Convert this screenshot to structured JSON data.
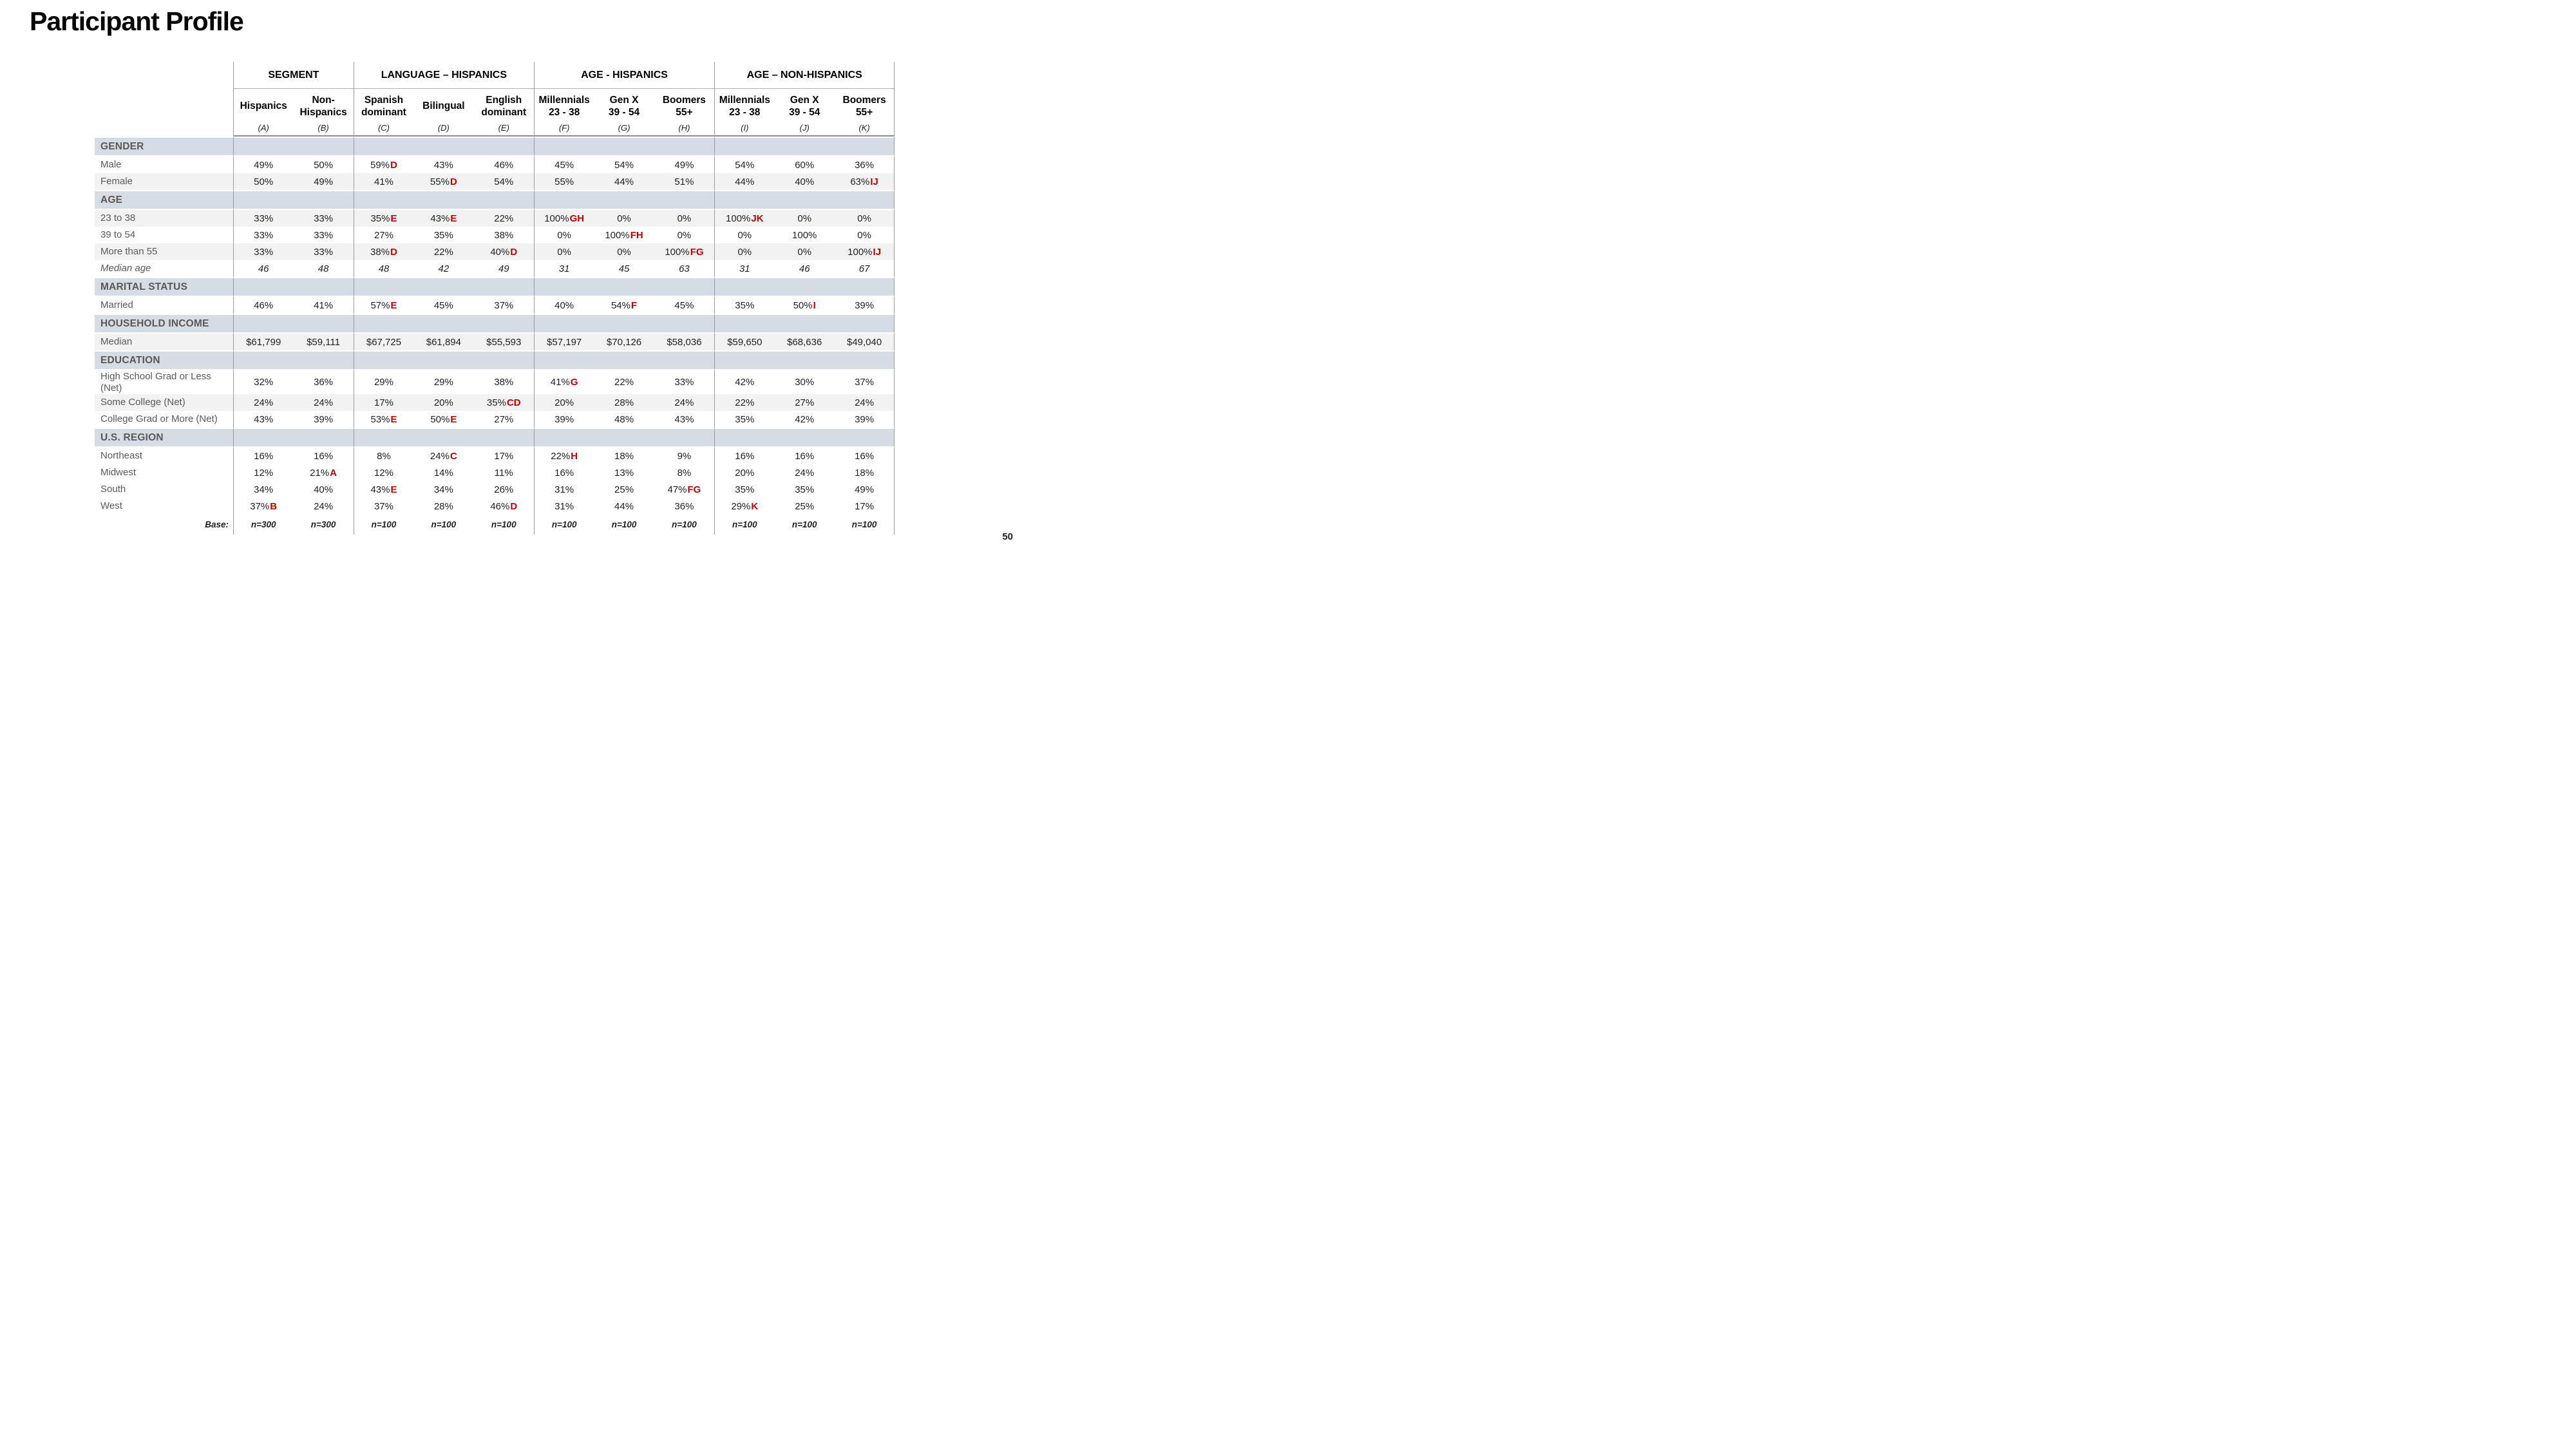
{
  "page": {
    "title": "Participant Profile",
    "page_number": "50"
  },
  "colors": {
    "accent_red": "#C00000",
    "section_band": "#D6DCE4",
    "row_stripe": "#F2F2F2",
    "grid_line": "#9B9B9B",
    "label_gray": "#595959"
  },
  "table": {
    "groups": [
      {
        "label": "SEGMENT",
        "cols": 2
      },
      {
        "label": "LANGUAGE – HISPANICS",
        "cols": 3
      },
      {
        "label": "AGE - HISPANICS",
        "cols": 3
      },
      {
        "label": "AGE – NON-HISPANICS",
        "cols": 3
      }
    ],
    "columns": [
      {
        "name": "Hispanics",
        "letter": "(A)"
      },
      {
        "name": "Non-\nHispanics",
        "letter": "(B)"
      },
      {
        "name": "Spanish\ndominant",
        "letter": "(C)"
      },
      {
        "name": "Bilingual",
        "letter": "(D)"
      },
      {
        "name": "English\ndominant",
        "letter": "(E)"
      },
      {
        "name": "Millennials\n23 - 38",
        "letter": "(F)"
      },
      {
        "name": "Gen X\n39 - 54",
        "letter": "(G)"
      },
      {
        "name": "Boomers\n55+",
        "letter": "(H)"
      },
      {
        "name": "Millennials\n23 - 38",
        "letter": "(I)"
      },
      {
        "name": "Gen X\n39 - 54",
        "letter": "(J)"
      },
      {
        "name": "Boomers\n55+",
        "letter": "(K)"
      }
    ],
    "sections": [
      {
        "header": "GENDER",
        "rows": [
          {
            "label": "Male",
            "bg": "white",
            "cells": [
              "49%",
              "50%",
              {
                "t": "59%",
                "s": "D"
              },
              "43%",
              "46%",
              "45%",
              "54%",
              "49%",
              "54%",
              "60%",
              "36%"
            ]
          },
          {
            "label": "Female",
            "bg": "stripe",
            "cells": [
              "50%",
              "49%",
              "41%",
              {
                "t": "55%",
                "s": "D"
              },
              "54%",
              "55%",
              "44%",
              "51%",
              "44%",
              "40%",
              {
                "t": "63%",
                "s": "IJ"
              }
            ]
          }
        ]
      },
      {
        "header": "AGE",
        "rows": [
          {
            "label": "23 to 38",
            "bg": "stripe",
            "cells": [
              "33%",
              "33%",
              {
                "t": "35%",
                "s": "E"
              },
              {
                "t": "43%",
                "s": "E"
              },
              "22%",
              {
                "t": "100%",
                "s": "GH"
              },
              "0%",
              "0%",
              {
                "t": "100%",
                "s": "JK"
              },
              "0%",
              "0%"
            ]
          },
          {
            "label": "39 to 54",
            "bg": "white",
            "cells": [
              "33%",
              "33%",
              "27%",
              "35%",
              "38%",
              "0%",
              {
                "t": "100%",
                "s": "FH"
              },
              "0%",
              "0%",
              "100%",
              "0%"
            ]
          },
          {
            "label": "More than 55",
            "bg": "stripe",
            "cells": [
              "33%",
              "33%",
              {
                "t": "38%",
                "s": "D"
              },
              "22%",
              {
                "t": "40%",
                "s": "D"
              },
              "0%",
              "0%",
              {
                "t": "100%",
                "s": "FG"
              },
              "0%",
              "0%",
              {
                "t": "100%",
                "s": "IJ"
              }
            ]
          },
          {
            "label": "Median age",
            "bg": "white",
            "italic": true,
            "cells": [
              "46",
              "48",
              "48",
              "42",
              "49",
              "31",
              "45",
              "63",
              "31",
              "46",
              "67"
            ]
          }
        ]
      },
      {
        "header": "MARITAL STATUS",
        "rows": [
          {
            "label": "Married",
            "bg": "white",
            "cells": [
              "46%",
              "41%",
              {
                "t": "57%",
                "s": "E"
              },
              "45%",
              "37%",
              "40%",
              {
                "t": "54%",
                "s": "F"
              },
              "45%",
              "35%",
              {
                "t": "50%",
                "s": "I"
              },
              "39%"
            ]
          }
        ]
      },
      {
        "header": "HOUSEHOLD INCOME",
        "rows": [
          {
            "label": "Median",
            "bg": "stripe",
            "cells": [
              "$61,799",
              "$59,111",
              "$67,725",
              "$61,894",
              "$55,593",
              "$57,197",
              "$70,126",
              "$58,036",
              "$59,650",
              "$68,636",
              "$49,040"
            ]
          }
        ]
      },
      {
        "header": "EDUCATION",
        "rows": [
          {
            "label": "High School Grad or Less (Net)",
            "bg": "white",
            "tall": true,
            "cells": [
              "32%",
              "36%",
              "29%",
              "29%",
              "38%",
              {
                "t": "41%",
                "s": "G"
              },
              "22%",
              "33%",
              "42%",
              "30%",
              "37%"
            ]
          },
          {
            "label": "Some College (Net)",
            "bg": "stripe",
            "cells": [
              "24%",
              "24%",
              "17%",
              "20%",
              {
                "t": "35%",
                "s": "CD"
              },
              "20%",
              "28%",
              "24%",
              "22%",
              "27%",
              "24%"
            ]
          },
          {
            "label": "College Grad or More (Net)",
            "bg": "white",
            "cells": [
              "43%",
              "39%",
              {
                "t": "53%",
                "s": "E"
              },
              {
                "t": "50%",
                "s": "E"
              },
              "27%",
              "39%",
              "48%",
              "43%",
              "35%",
              "42%",
              "39%"
            ]
          }
        ]
      },
      {
        "header": "U.S. REGION",
        "rows": [
          {
            "label": "Northeast",
            "bg": "white",
            "cells": [
              "16%",
              "16%",
              "8%",
              {
                "t": "24%",
                "s": "C"
              },
              "17%",
              {
                "t": "22%",
                "s": "H"
              },
              "18%",
              "9%",
              "16%",
              "16%",
              "16%"
            ]
          },
          {
            "label": "Midwest",
            "bg": "white",
            "cells": [
              "12%",
              {
                "t": "21%",
                "s": "A"
              },
              "12%",
              "14%",
              "11%",
              "16%",
              "13%",
              "8%",
              "20%",
              "24%",
              "18%"
            ]
          },
          {
            "label": "South",
            "bg": "white",
            "cells": [
              "34%",
              "40%",
              {
                "t": "43%",
                "s": "E"
              },
              "34%",
              "26%",
              "31%",
              "25%",
              {
                "t": "47%",
                "s": "FG"
              },
              "35%",
              "35%",
              "49%"
            ]
          },
          {
            "label": "West",
            "bg": "white",
            "cells": [
              {
                "t": "37%",
                "s": "B"
              },
              "24%",
              "37%",
              "28%",
              {
                "t": "46%",
                "s": "D"
              },
              "31%",
              "44%",
              "36%",
              {
                "t": "29%",
                "s": "K"
              },
              "25%",
              "17%"
            ]
          }
        ]
      }
    ],
    "base": {
      "label": "Base:",
      "values": [
        "n=300",
        "n=300",
        "n=100",
        "n=100",
        "n=100",
        "n=100",
        "n=100",
        "n=100",
        "n=100",
        "n=100",
        "n=100"
      ]
    }
  }
}
